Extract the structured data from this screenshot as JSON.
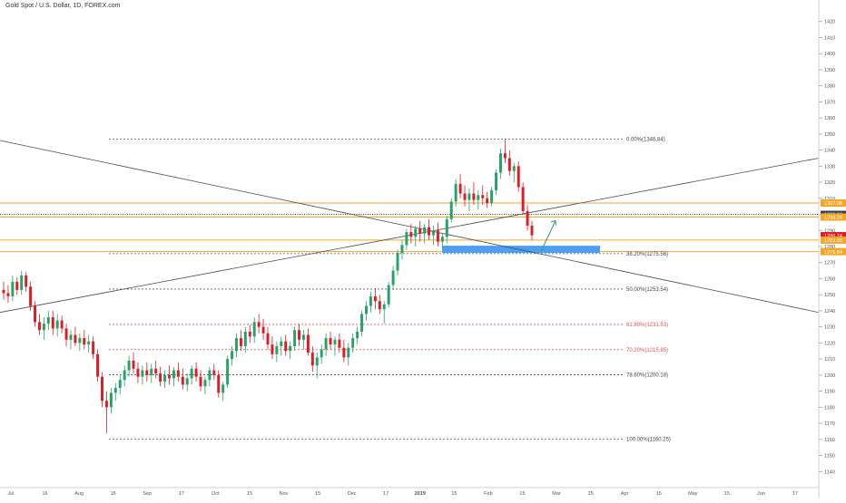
{
  "header": {
    "title": "Gold Spot / U.S. Dollar, 1D, FOREX.com"
  },
  "colors": {
    "up": "#26a269",
    "down": "#e01b24",
    "fib_neutral": "#555555",
    "fib_red": "#e05050",
    "orange": "#f5a623",
    "blue_zone": "#4a9ff5",
    "arrow": "#22a06b",
    "trendline": "#4a4a55"
  },
  "chart_data": {
    "type": "candlestick",
    "ylim": [
      1130,
      1430
    ],
    "y_ticks": [
      1140,
      1150,
      1160,
      1170,
      1180,
      1190,
      1200,
      1210,
      1220,
      1230,
      1240,
      1250,
      1260,
      1270,
      1280,
      1290,
      1300,
      1310,
      1320,
      1330,
      1340,
      1350,
      1360,
      1370,
      1380,
      1390,
      1400,
      1410,
      1420
    ],
    "x_ticks": [
      "Jul",
      "16",
      "Aug",
      "15",
      "Sep",
      "17",
      "Oct",
      "15",
      "Nov",
      "15",
      "Dec",
      "17",
      "2019",
      "15",
      "Feb",
      "15",
      "Mar",
      "15",
      "Apr",
      "15",
      "May",
      "15",
      "Jun",
      "17"
    ],
    "fib_levels": [
      {
        "label": "0.00%(1346.84)",
        "value": 1346.84,
        "tone": "neutral"
      },
      {
        "label": "38.20%(1275.56)",
        "value": 1275.56,
        "tone": "neutral"
      },
      {
        "label": "50.00%(1253.54)",
        "value": 1253.54,
        "tone": "neutral"
      },
      {
        "label": "61.80%(1231.53)",
        "value": 1231.53,
        "tone": "red"
      },
      {
        "label": "70.20%(1215.85)",
        "value": 1215.85,
        "tone": "red"
      },
      {
        "label": "78.60%(1200.18)",
        "value": 1200.18,
        "tone": "neutral"
      },
      {
        "label": "100.00%(1160.25)",
        "value": 1160.25,
        "tone": "neutral"
      }
    ],
    "price_tags": [
      {
        "label": "1307.08",
        "value": 1307.08,
        "color": "#f5a623"
      },
      {
        "label": "1300.00",
        "value": 1300.0,
        "color": "#3b3b4a"
      },
      {
        "label": "1298.34",
        "value": 1298.34,
        "color": "#f5a623"
      },
      {
        "label": "1286.74",
        "value": 1286.74,
        "color": "#e01b24"
      },
      {
        "label": "1283.99",
        "value": 1283.99,
        "color": "#f5a623"
      },
      {
        "label": "1276.84",
        "value": 1276.84,
        "color": "#f5a623"
      }
    ],
    "horizontal_lines": [
      {
        "value": 1307.08,
        "style": "solid-orange"
      },
      {
        "value": 1300.0,
        "style": "dotted-dark"
      },
      {
        "value": 1298.34,
        "style": "solid-orange"
      },
      {
        "value": 1283.99,
        "style": "solid-orange"
      },
      {
        "value": 1276.84,
        "style": "solid-orange"
      }
    ],
    "trendlines": [
      {
        "from": [
          0,
          1346
        ],
        "to": [
          1,
          1239
        ]
      },
      {
        "from": [
          0,
          1239
        ],
        "to": [
          1,
          1335
        ]
      }
    ],
    "zone": {
      "low": 1276.0,
      "high": 1280.5
    },
    "ohlc": [
      [
        1253,
        1258,
        1247,
        1251
      ],
      [
        1251,
        1256,
        1245,
        1249
      ],
      [
        1249,
        1262,
        1246,
        1258
      ],
      [
        1258,
        1261,
        1250,
        1253
      ],
      [
        1253,
        1265,
        1250,
        1262
      ],
      [
        1262,
        1264,
        1252,
        1255
      ],
      [
        1255,
        1258,
        1240,
        1243
      ],
      [
        1243,
        1246,
        1230,
        1233
      ],
      [
        1233,
        1238,
        1225,
        1228
      ],
      [
        1228,
        1236,
        1222,
        1232
      ],
      [
        1232,
        1240,
        1228,
        1236
      ],
      [
        1236,
        1240,
        1225,
        1229
      ],
      [
        1229,
        1238,
        1224,
        1234
      ],
      [
        1234,
        1237,
        1226,
        1229
      ],
      [
        1229,
        1232,
        1218,
        1222
      ],
      [
        1222,
        1228,
        1216,
        1225
      ],
      [
        1225,
        1230,
        1218,
        1220
      ],
      [
        1220,
        1226,
        1215,
        1223
      ],
      [
        1223,
        1228,
        1216,
        1219
      ],
      [
        1219,
        1225,
        1214,
        1221
      ],
      [
        1221,
        1224,
        1210,
        1213
      ],
      [
        1213,
        1216,
        1196,
        1199
      ],
      [
        1199,
        1202,
        1180,
        1184
      ],
      [
        1184,
        1190,
        1164,
        1180
      ],
      [
        1180,
        1192,
        1176,
        1189
      ],
      [
        1189,
        1195,
        1184,
        1192
      ],
      [
        1192,
        1200,
        1188,
        1197
      ],
      [
        1197,
        1206,
        1193,
        1203
      ],
      [
        1203,
        1212,
        1199,
        1209
      ],
      [
        1209,
        1214,
        1201,
        1204
      ],
      [
        1204,
        1208,
        1195,
        1199
      ],
      [
        1199,
        1206,
        1194,
        1203
      ],
      [
        1203,
        1208,
        1196,
        1200
      ],
      [
        1200,
        1207,
        1195,
        1204
      ],
      [
        1204,
        1209,
        1198,
        1201
      ],
      [
        1201,
        1205,
        1193,
        1196
      ],
      [
        1196,
        1203,
        1192,
        1200
      ],
      [
        1200,
        1206,
        1194,
        1198
      ],
      [
        1198,
        1205,
        1193,
        1203
      ],
      [
        1203,
        1208,
        1196,
        1199
      ],
      [
        1199,
        1204,
        1191,
        1194
      ],
      [
        1194,
        1201,
        1190,
        1198
      ],
      [
        1198,
        1206,
        1194,
        1204
      ],
      [
        1204,
        1208,
        1196,
        1199
      ],
      [
        1199,
        1203,
        1190,
        1193
      ],
      [
        1193,
        1199,
        1188,
        1197
      ],
      [
        1197,
        1205,
        1193,
        1203
      ],
      [
        1203,
        1207,
        1197,
        1200
      ],
      [
        1200,
        1203,
        1186,
        1189
      ],
      [
        1189,
        1196,
        1184,
        1194
      ],
      [
        1194,
        1212,
        1192,
        1210
      ],
      [
        1210,
        1218,
        1206,
        1215
      ],
      [
        1215,
        1226,
        1211,
        1223
      ],
      [
        1223,
        1228,
        1215,
        1218
      ],
      [
        1218,
        1230,
        1214,
        1227
      ],
      [
        1227,
        1231,
        1220,
        1224
      ],
      [
        1224,
        1236,
        1220,
        1233
      ],
      [
        1233,
        1238,
        1226,
        1230
      ],
      [
        1230,
        1235,
        1222,
        1226
      ],
      [
        1226,
        1230,
        1216,
        1219
      ],
      [
        1219,
        1224,
        1210,
        1213
      ],
      [
        1213,
        1221,
        1208,
        1218
      ],
      [
        1218,
        1224,
        1212,
        1221
      ],
      [
        1221,
        1225,
        1212,
        1215
      ],
      [
        1215,
        1221,
        1210,
        1218
      ],
      [
        1218,
        1230,
        1215,
        1228
      ],
      [
        1228,
        1232,
        1218,
        1222
      ],
      [
        1222,
        1228,
        1216,
        1225
      ],
      [
        1225,
        1229,
        1212,
        1214
      ],
      [
        1214,
        1218,
        1202,
        1206
      ],
      [
        1206,
        1214,
        1198,
        1211
      ],
      [
        1211,
        1219,
        1207,
        1216
      ],
      [
        1216,
        1226,
        1212,
        1223
      ],
      [
        1223,
        1227,
        1216,
        1219
      ],
      [
        1219,
        1224,
        1212,
        1222
      ],
      [
        1222,
        1226,
        1214,
        1217
      ],
      [
        1217,
        1222,
        1208,
        1211
      ],
      [
        1211,
        1220,
        1206,
        1217
      ],
      [
        1217,
        1226,
        1214,
        1223
      ],
      [
        1223,
        1230,
        1219,
        1227
      ],
      [
        1227,
        1240,
        1224,
        1238
      ],
      [
        1238,
        1246,
        1234,
        1243
      ],
      [
        1243,
        1252,
        1239,
        1249
      ],
      [
        1249,
        1254,
        1241,
        1246
      ],
      [
        1246,
        1250,
        1238,
        1241
      ],
      [
        1241,
        1246,
        1232,
        1244
      ],
      [
        1244,
        1258,
        1242,
        1256
      ],
      [
        1256,
        1268,
        1253,
        1265
      ],
      [
        1265,
        1278,
        1262,
        1276
      ],
      [
        1276,
        1284,
        1272,
        1281
      ],
      [
        1281,
        1291,
        1278,
        1289
      ],
      [
        1289,
        1294,
        1282,
        1286
      ],
      [
        1286,
        1293,
        1280,
        1291
      ],
      [
        1291,
        1296,
        1283,
        1288
      ],
      [
        1288,
        1294,
        1282,
        1292
      ],
      [
        1292,
        1297,
        1284,
        1287
      ],
      [
        1287,
        1293,
        1281,
        1290
      ],
      [
        1290,
        1295,
        1280,
        1283
      ],
      [
        1283,
        1288,
        1279,
        1286
      ],
      [
        1286,
        1299,
        1282,
        1297
      ],
      [
        1297,
        1310,
        1295,
        1308
      ],
      [
        1308,
        1322,
        1305,
        1319
      ],
      [
        1319,
        1325,
        1310,
        1313
      ],
      [
        1313,
        1318,
        1305,
        1309
      ],
      [
        1309,
        1316,
        1302,
        1313
      ],
      [
        1313,
        1320,
        1306,
        1309
      ],
      [
        1309,
        1315,
        1303,
        1312
      ],
      [
        1312,
        1318,
        1306,
        1310
      ],
      [
        1310,
        1314,
        1304,
        1307
      ],
      [
        1307,
        1317,
        1305,
        1315
      ],
      [
        1315,
        1328,
        1312,
        1326
      ],
      [
        1326,
        1341,
        1322,
        1338
      ],
      [
        1338,
        1347,
        1332,
        1335
      ],
      [
        1335,
        1340,
        1324,
        1327
      ],
      [
        1327,
        1332,
        1320,
        1330
      ],
      [
        1330,
        1333,
        1314,
        1317
      ],
      [
        1317,
        1320,
        1300,
        1302
      ],
      [
        1302,
        1306,
        1290,
        1293
      ],
      [
        1293,
        1296,
        1284,
        1287
      ]
    ]
  }
}
